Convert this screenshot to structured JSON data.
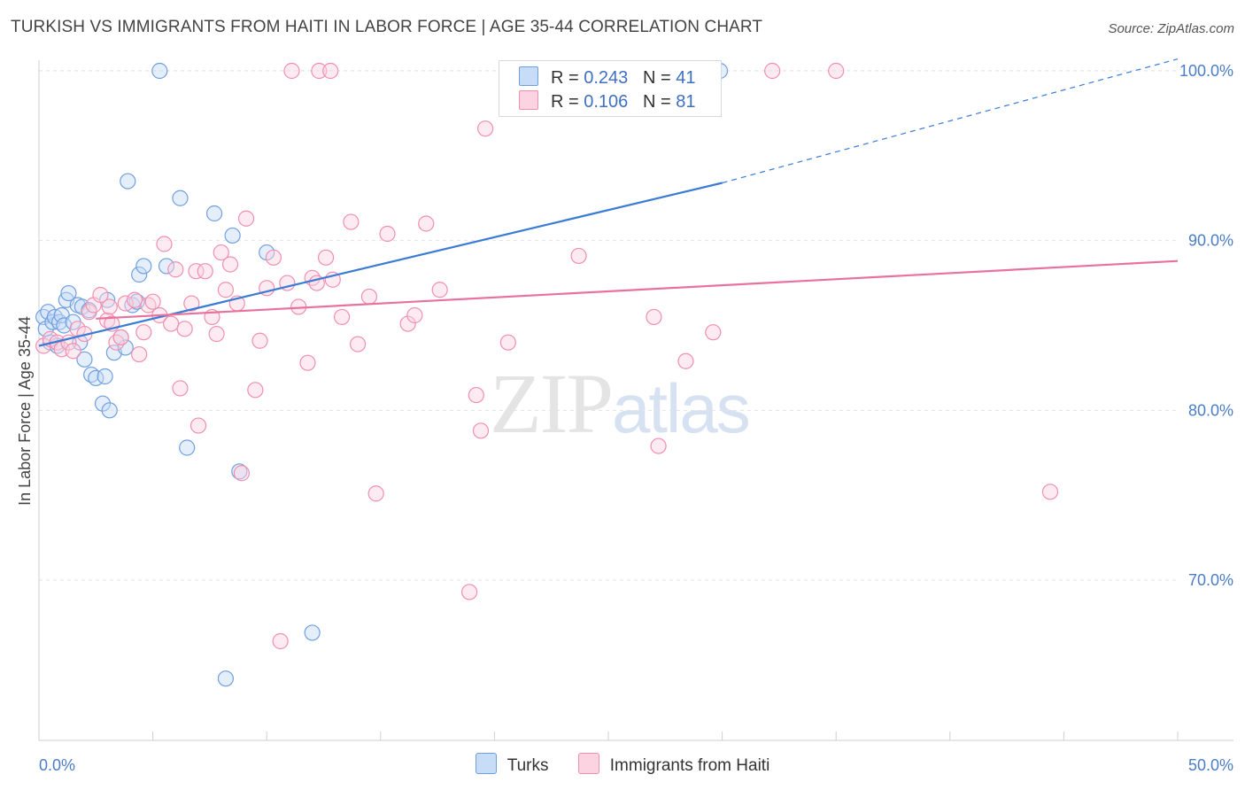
{
  "title": "TURKISH VS IMMIGRANTS FROM HAITI IN LABOR FORCE | AGE 35-44 CORRELATION CHART",
  "source": "Source: ZipAtlas.com",
  "watermark": {
    "zip": "ZIP",
    "atlas": "atlas"
  },
  "legend": {
    "rows": [
      {
        "r_label": "R =",
        "r_value": "0.243",
        "n_label": "N =",
        "n_value": "41"
      },
      {
        "r_label": "R =",
        "r_value": "0.106",
        "n_label": "N =",
        "n_value": "81"
      }
    ]
  },
  "colors": {
    "turks": "#6f9fe0",
    "turks_line": "#3a7bd5",
    "haiti": "#f08fb0",
    "haiti_line": "#e8729e",
    "tick": "#4a7cc7"
  },
  "chart_data": {
    "type": "scatter",
    "title": "TURKISH VS IMMIGRANTS FROM HAITI IN LABOR FORCE | AGE 35-44 CORRELATION CHART",
    "xlabel": "",
    "ylabel": "In Labor Force | Age 35-44",
    "xlim": [
      0,
      50
    ],
    "ylim": [
      60.5,
      102
    ],
    "x_ticks": [
      "0.0%",
      "50.0%"
    ],
    "y_ticks": [
      {
        "value": 100,
        "label": "100.0%"
      },
      {
        "value": 90,
        "label": "90.0%"
      },
      {
        "value": 80,
        "label": "80.0%"
      },
      {
        "value": 70,
        "label": "70.0%"
      }
    ],
    "legend_placement": "top-center",
    "series": [
      {
        "name": "Turks",
        "R": 0.243,
        "N": 41,
        "trend": {
          "x0": 0,
          "y0": 83.8,
          "x1": 30,
          "y1": 93.4,
          "dashed_to_x": 50,
          "dashed_to_y": 100.7
        },
        "points": [
          [
            0.2,
            85.5
          ],
          [
            0.3,
            84.8
          ],
          [
            0.4,
            85.8
          ],
          [
            0.5,
            84.0
          ],
          [
            0.6,
            85.2
          ],
          [
            0.7,
            85.5
          ],
          [
            0.8,
            83.8
          ],
          [
            0.9,
            85.2
          ],
          [
            1.0,
            85.6
          ],
          [
            1.1,
            85.0
          ],
          [
            1.2,
            86.5
          ],
          [
            1.3,
            86.9
          ],
          [
            1.5,
            85.2
          ],
          [
            1.7,
            86.2
          ],
          [
            1.8,
            84.0
          ],
          [
            1.9,
            86.1
          ],
          [
            2.0,
            83.0
          ],
          [
            2.2,
            85.9
          ],
          [
            2.3,
            82.1
          ],
          [
            2.5,
            81.9
          ],
          [
            2.8,
            80.4
          ],
          [
            2.9,
            82.0
          ],
          [
            3.0,
            86.5
          ],
          [
            3.1,
            80.0
          ],
          [
            3.3,
            83.4
          ],
          [
            3.6,
            84.3
          ],
          [
            3.8,
            83.7
          ],
          [
            3.9,
            93.5
          ],
          [
            4.1,
            86.2
          ],
          [
            4.3,
            86.4
          ],
          [
            4.4,
            88.0
          ],
          [
            4.6,
            88.5
          ],
          [
            5.3,
            100.0
          ],
          [
            5.6,
            88.5
          ],
          [
            6.2,
            92.5
          ],
          [
            6.5,
            77.8
          ],
          [
            7.7,
            91.6
          ],
          [
            8.2,
            64.2
          ],
          [
            8.5,
            90.3
          ],
          [
            8.8,
            76.4
          ],
          [
            10.0,
            89.3
          ],
          [
            12.0,
            66.9
          ],
          [
            29.9,
            100.0
          ]
        ]
      },
      {
        "name": "Immigrants from Haiti",
        "R": 0.106,
        "N": 81,
        "trend": {
          "x0": 2.5,
          "y0": 85.4,
          "x1": 50,
          "y1": 88.8
        },
        "points": [
          [
            0.2,
            83.8
          ],
          [
            0.5,
            84.2
          ],
          [
            0.8,
            84.0
          ],
          [
            1.0,
            83.6
          ],
          [
            1.3,
            84.0
          ],
          [
            1.5,
            83.5
          ],
          [
            1.7,
            84.8
          ],
          [
            2.0,
            84.5
          ],
          [
            2.2,
            85.8
          ],
          [
            2.4,
            86.2
          ],
          [
            2.7,
            86.8
          ],
          [
            3.0,
            85.3
          ],
          [
            3.1,
            86.1
          ],
          [
            3.2,
            85.1
          ],
          [
            3.4,
            84.0
          ],
          [
            3.6,
            84.3
          ],
          [
            3.8,
            86.3
          ],
          [
            4.2,
            86.5
          ],
          [
            4.4,
            83.3
          ],
          [
            4.6,
            84.6
          ],
          [
            4.8,
            86.2
          ],
          [
            5.0,
            86.4
          ],
          [
            5.3,
            85.6
          ],
          [
            5.5,
            89.8
          ],
          [
            5.8,
            85.1
          ],
          [
            6.0,
            88.3
          ],
          [
            6.2,
            81.3
          ],
          [
            6.4,
            84.8
          ],
          [
            6.7,
            86.3
          ],
          [
            6.9,
            88.2
          ],
          [
            7.0,
            79.1
          ],
          [
            7.3,
            88.2
          ],
          [
            7.6,
            85.5
          ],
          [
            7.8,
            84.5
          ],
          [
            8.0,
            89.3
          ],
          [
            8.2,
            87.1
          ],
          [
            8.4,
            88.6
          ],
          [
            8.7,
            86.3
          ],
          [
            8.9,
            76.3
          ],
          [
            9.1,
            91.3
          ],
          [
            9.5,
            81.2
          ],
          [
            9.7,
            84.1
          ],
          [
            10.0,
            87.2
          ],
          [
            10.3,
            89.0
          ],
          [
            10.6,
            66.4
          ],
          [
            10.9,
            87.5
          ],
          [
            11.1,
            100.0
          ],
          [
            11.4,
            86.1
          ],
          [
            11.8,
            82.8
          ],
          [
            12.0,
            87.8
          ],
          [
            12.2,
            87.5
          ],
          [
            12.3,
            100.0
          ],
          [
            12.6,
            89.0
          ],
          [
            12.8,
            100.0
          ],
          [
            12.9,
            87.7
          ],
          [
            13.3,
            85.5
          ],
          [
            13.7,
            91.1
          ],
          [
            14.0,
            83.9
          ],
          [
            14.5,
            86.7
          ],
          [
            14.8,
            75.1
          ],
          [
            15.3,
            90.4
          ],
          [
            16.2,
            85.1
          ],
          [
            16.5,
            85.6
          ],
          [
            17.0,
            91.0
          ],
          [
            17.6,
            87.1
          ],
          [
            18.9,
            69.3
          ],
          [
            19.2,
            80.9
          ],
          [
            19.4,
            78.8
          ],
          [
            19.6,
            96.6
          ],
          [
            20.6,
            84.0
          ],
          [
            23.7,
            89.1
          ],
          [
            27.0,
            85.5
          ],
          [
            27.2,
            77.9
          ],
          [
            28.4,
            82.9
          ],
          [
            29.6,
            84.6
          ],
          [
            32.2,
            100.0
          ],
          [
            35.0,
            100.0
          ],
          [
            44.4,
            75.2
          ]
        ]
      }
    ]
  },
  "bottom_legend": [
    {
      "label": "Turks"
    },
    {
      "label": "Immigrants from Haiti"
    }
  ]
}
